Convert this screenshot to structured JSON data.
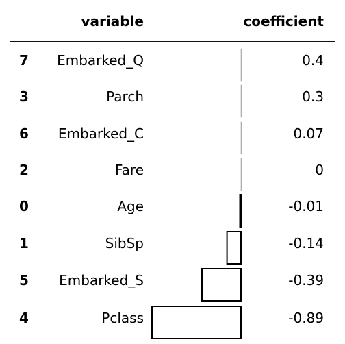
{
  "table": {
    "headers": {
      "index": "",
      "variable": "variable",
      "coefficient": "coefficient"
    },
    "rows": [
      {
        "index": "7",
        "variable": "Embarked_Q",
        "coefficient": "0.4"
      },
      {
        "index": "3",
        "variable": "Parch",
        "coefficient": "0.3"
      },
      {
        "index": "6",
        "variable": "Embarked_C",
        "coefficient": "0.07"
      },
      {
        "index": "2",
        "variable": "Fare",
        "coefficient": "0"
      },
      {
        "index": "0",
        "variable": "Age",
        "coefficient": "-0.01"
      },
      {
        "index": "1",
        "variable": "SibSp",
        "coefficient": "-0.14"
      },
      {
        "index": "5",
        "variable": "Embarked_S",
        "coefficient": "-0.39"
      },
      {
        "index": "4",
        "variable": "Pclass",
        "coefficient": "-0.89"
      }
    ]
  },
  "colors": {
    "text": "#000000",
    "bar_outline": "#000000",
    "background": "#ffffff"
  }
}
